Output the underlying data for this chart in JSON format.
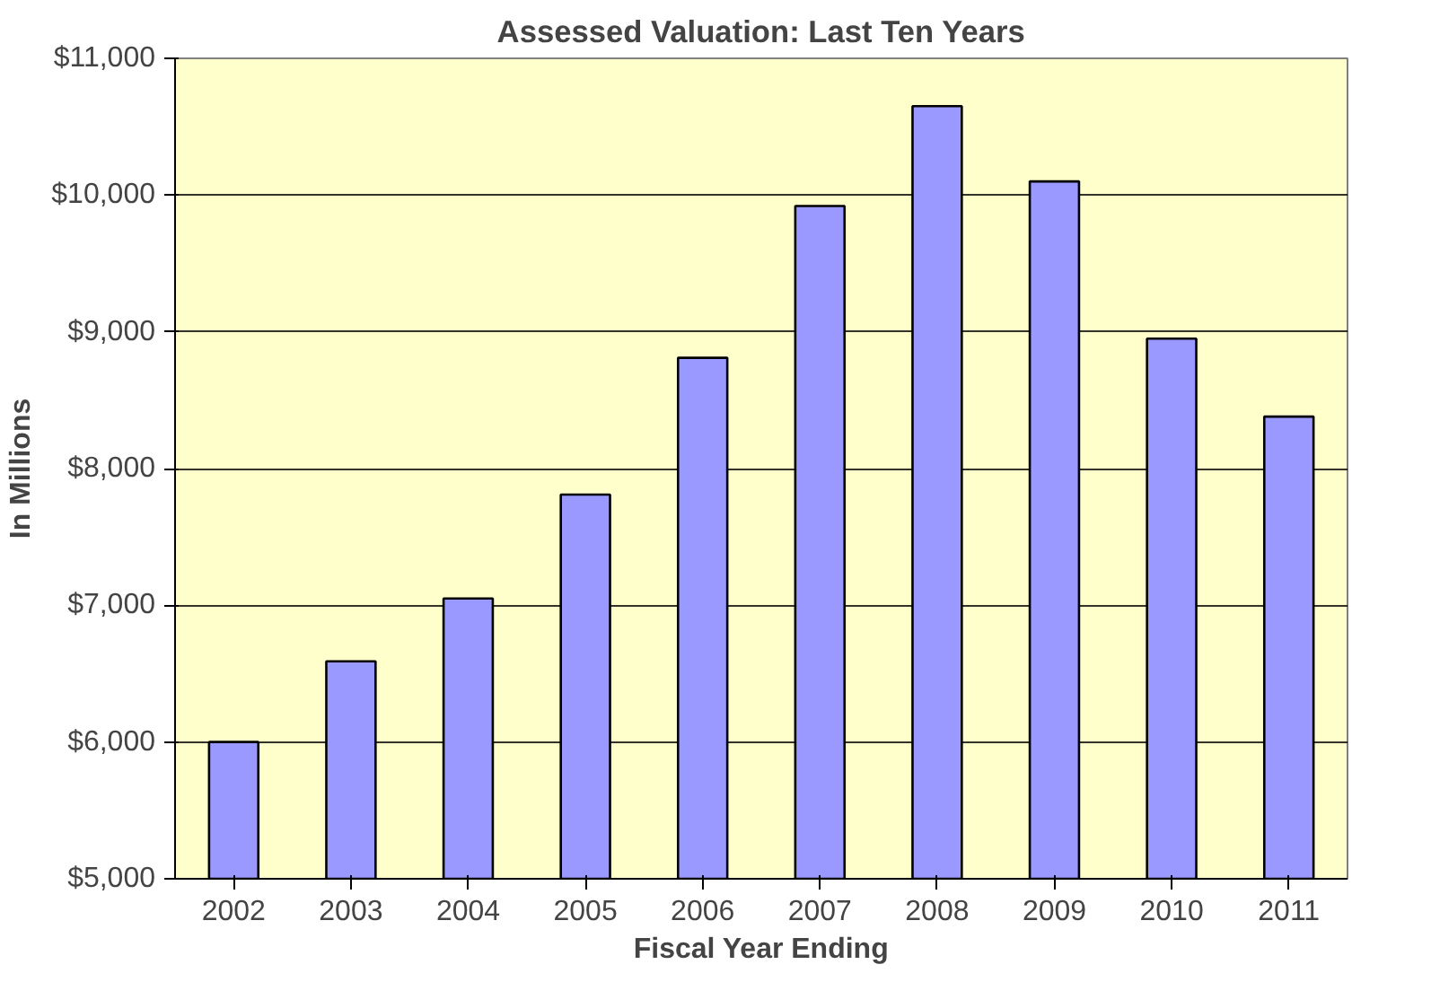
{
  "chart_data": {
    "type": "bar",
    "title": "Assessed Valuation: Last Ten Years",
    "xlabel": "Fiscal Year Ending",
    "ylabel": "In Millions",
    "categories": [
      "2002",
      "2003",
      "2004",
      "2005",
      "2006",
      "2007",
      "2008",
      "2009",
      "2010",
      "2011"
    ],
    "values": [
      6000,
      6590,
      7050,
      7810,
      8810,
      9920,
      10650,
      10100,
      8950,
      8380
    ],
    "color": "#9999ff",
    "ylim": [
      5000,
      11000
    ],
    "yticks": [
      {
        "value": 5000,
        "label": "$5,000"
      },
      {
        "value": 6000,
        "label": "$6,000"
      },
      {
        "value": 7000,
        "label": "$7,000"
      },
      {
        "value": 8000,
        "label": "$8,000"
      },
      {
        "value": 9000,
        "label": "$9,000"
      },
      {
        "value": 10000,
        "label": "$10,000"
      },
      {
        "value": 11000,
        "label": "$11,000"
      }
    ],
    "grid": "y"
  }
}
